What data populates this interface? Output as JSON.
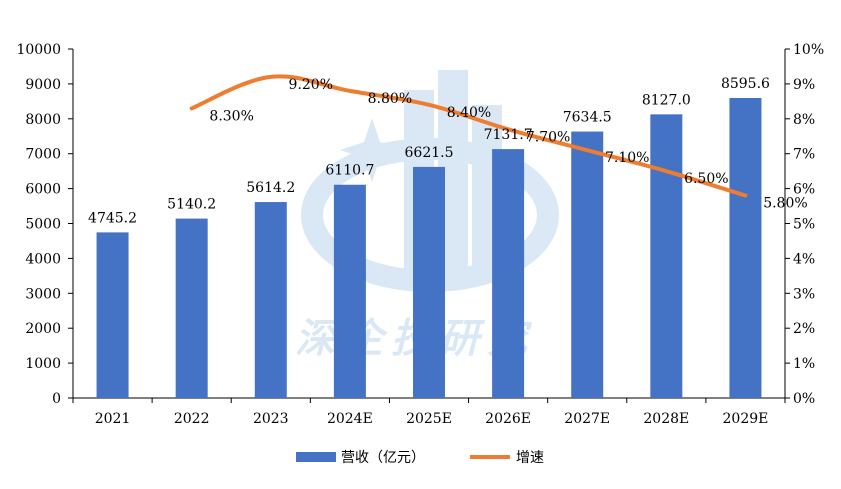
{
  "chart_data": {
    "type": "bar",
    "categories": [
      "2021",
      "2022",
      "2023",
      "2024E",
      "2025E",
      "2026E",
      "2027E",
      "2028E",
      "2029E"
    ],
    "series": [
      {
        "name": "营收（亿元）",
        "type": "bar",
        "axis": "left",
        "values": [
          4745.2,
          5140.2,
          5614.2,
          6110.7,
          6621.5,
          7131.7,
          7634.5,
          8127.0,
          8595.6
        ],
        "labels": [
          "4745.2",
          "5140.2",
          "5614.2",
          "6110.7",
          "6621.5",
          "7131.7",
          "7634.5",
          "8127.0",
          "8595.6"
        ],
        "color": "#4472C4"
      },
      {
        "name": "增速",
        "type": "line",
        "axis": "right",
        "values": [
          null,
          8.3,
          9.2,
          8.8,
          8.4,
          7.7,
          7.1,
          6.5,
          5.8
        ],
        "labels": [
          "",
          "8.30%",
          "9.20%",
          "8.80%",
          "8.40%",
          "7.70%",
          "7.10%",
          "6.50%",
          "5.80%"
        ],
        "color": "#ED7D31"
      }
    ],
    "left_axis": {
      "ylim": [
        0,
        10000
      ],
      "ticks": [
        "0",
        "1000",
        "2000",
        "3000",
        "4000",
        "5000",
        "6000",
        "7000",
        "8000",
        "9000",
        "10000"
      ]
    },
    "right_axis": {
      "ylim": [
        0,
        10
      ],
      "ticks": [
        "0%",
        "1%",
        "2%",
        "3%",
        "4%",
        "5%",
        "6%",
        "7%",
        "8%",
        "9%",
        "10%"
      ]
    },
    "grid": false,
    "legend_position": "bottom",
    "watermark_text": "深企技研究"
  }
}
